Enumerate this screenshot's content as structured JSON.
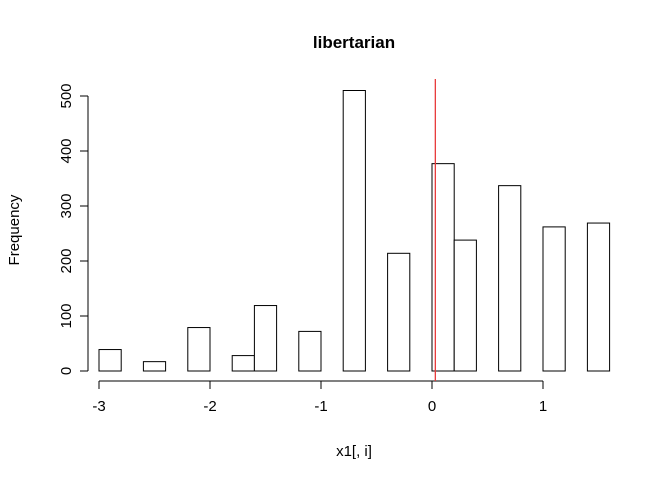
{
  "chart_data": {
    "type": "histogram",
    "title": "libertarian",
    "xlabel": "x1[, i]",
    "ylabel": "Frequency",
    "xlim": [
      -3,
      1.6
    ],
    "ylim": [
      0,
      510
    ],
    "bin_width": 0.2,
    "bins": [
      {
        "start": -3.0,
        "end": -2.8,
        "count": 39
      },
      {
        "start": -2.8,
        "end": -2.6,
        "count": 0
      },
      {
        "start": -2.6,
        "end": -2.4,
        "count": 17
      },
      {
        "start": -2.4,
        "end": -2.2,
        "count": 0
      },
      {
        "start": -2.2,
        "end": -2.0,
        "count": 79
      },
      {
        "start": -2.0,
        "end": -1.8,
        "count": 0
      },
      {
        "start": -1.8,
        "end": -1.6,
        "count": 28
      },
      {
        "start": -1.6,
        "end": -1.4,
        "count": 119
      },
      {
        "start": -1.4,
        "end": -1.2,
        "count": 0
      },
      {
        "start": -1.2,
        "end": -1.0,
        "count": 72
      },
      {
        "start": -1.0,
        "end": -0.8,
        "count": 0
      },
      {
        "start": -0.8,
        "end": -0.6,
        "count": 510
      },
      {
        "start": -0.6,
        "end": -0.4,
        "count": 0
      },
      {
        "start": -0.4,
        "end": -0.2,
        "count": 214
      },
      {
        "start": -0.2,
        "end": 0.0,
        "count": 0
      },
      {
        "start": 0.0,
        "end": 0.2,
        "count": 377
      },
      {
        "start": 0.2,
        "end": 0.4,
        "count": 238
      },
      {
        "start": 0.4,
        "end": 0.6,
        "count": 0
      },
      {
        "start": 0.6,
        "end": 0.8,
        "count": 337
      },
      {
        "start": 0.8,
        "end": 1.0,
        "count": 0
      },
      {
        "start": 1.0,
        "end": 1.2,
        "count": 262
      },
      {
        "start": 1.2,
        "end": 1.4,
        "count": 0
      },
      {
        "start": 1.4,
        "end": 1.6,
        "count": 269
      }
    ],
    "x_ticks": [
      {
        "value": -3,
        "label": "-3"
      },
      {
        "value": -2,
        "label": "-2"
      },
      {
        "value": -1,
        "label": "-1"
      },
      {
        "value": 0,
        "label": "0"
      },
      {
        "value": 1,
        "label": "1"
      }
    ],
    "y_ticks": [
      {
        "value": 0,
        "label": "0"
      },
      {
        "value": 100,
        "label": "100"
      },
      {
        "value": 200,
        "label": "200"
      },
      {
        "value": 300,
        "label": "300"
      },
      {
        "value": 400,
        "label": "400"
      },
      {
        "value": 500,
        "label": "500"
      }
    ],
    "vline": {
      "x": 0.03,
      "color": "#e8393a"
    },
    "bar_fill": "#ffffff",
    "bar_stroke": "#000000"
  }
}
